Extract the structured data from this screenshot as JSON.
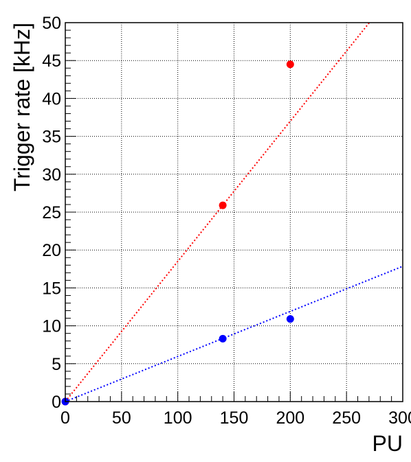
{
  "chart_data": {
    "type": "scatter",
    "title": "",
    "xlabel": "PU",
    "ylabel": "Trigger rate [kHz]",
    "xlim": [
      0,
      300
    ],
    "ylim": [
      0,
      50
    ],
    "xticks": [
      "0",
      "50",
      "100",
      "150",
      "200",
      "250",
      "300"
    ],
    "yticks": [
      "0",
      "5",
      "10",
      "15",
      "20",
      "25",
      "30",
      "35",
      "40",
      "45",
      "50"
    ],
    "grid": true,
    "legend": "none",
    "series": [
      {
        "color": "#ff0000",
        "points": [
          [
            0,
            0
          ],
          [
            140,
            25.9
          ],
          [
            200,
            44.5
          ]
        ],
        "fit_line": {
          "style": "dotted",
          "slope": 0.185,
          "intercept": 0
        }
      },
      {
        "color": "#0000ff",
        "points": [
          [
            0,
            0
          ],
          [
            140,
            8.3
          ],
          [
            200,
            10.9
          ]
        ],
        "fit_line": {
          "style": "dotted",
          "slope": 0.0595,
          "intercept": 0
        }
      }
    ]
  }
}
